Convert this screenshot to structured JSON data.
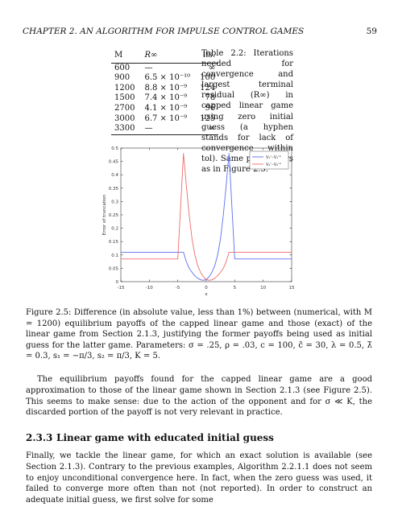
{
  "header": {
    "chapter": "CHAPTER 2.  AN ALGORITHM FOR IMPULSE CONTROL GAMES",
    "page_number": "59"
  },
  "table": {
    "columns": [
      "M",
      "R∞",
      "its."
    ],
    "rows": [
      [
        "600",
        "—",
        "∞"
      ],
      [
        "900",
        "6.5 × 10⁻¹⁰",
        "100"
      ],
      [
        "1200",
        "8.8 × 10⁻⁹",
        "124"
      ],
      [
        "1500",
        "7.4 × 10⁻⁹",
        "78"
      ],
      [
        "2700",
        "4.1 × 10⁻⁹",
        "96"
      ],
      [
        "3000",
        "6.7 × 10⁻⁹",
        "125"
      ],
      [
        "3300",
        "—",
        "∞"
      ]
    ],
    "caption": "Table 2.2: Iterations needed for convergence and largest terminal residual (R∞) in capped linear game using zero initial guess (a hyphen stands for lack of convergence within tol). Same parameters as in Figure 2.5."
  },
  "chart_data": {
    "type": "line",
    "ylabel": "Error of truncation",
    "xlabel": "x",
    "xlim": [
      -15,
      15
    ],
    "ylim": [
      0,
      0.5
    ],
    "xticks": [
      -15,
      -10,
      -5,
      0,
      5,
      10,
      15
    ],
    "yticks": [
      0,
      0.05,
      0.1,
      0.15,
      0.2,
      0.25,
      0.3,
      0.35,
      0.4,
      0.45,
      0.5
    ],
    "grid": false,
    "legend": "top-right",
    "series": [
      {
        "name": "V₁ᶜ–V₁ᶜᵃ",
        "color": "#5b6ff0",
        "x": [
          -15,
          -10,
          -5,
          -4,
          -3.5,
          -3,
          -2.5,
          -2,
          -1.5,
          -1,
          -0.5,
          0,
          0.5,
          1,
          1.5,
          2,
          2.5,
          3,
          3.5,
          4,
          5,
          10,
          15
        ],
        "y": [
          0.11,
          0.11,
          0.11,
          0.11,
          0.075,
          0.05,
          0.035,
          0.022,
          0.013,
          0.007,
          0.005,
          0.008,
          0.018,
          0.035,
          0.06,
          0.1,
          0.16,
          0.25,
          0.36,
          0.48,
          0.085,
          0.085,
          0.085
        ]
      },
      {
        "name": "V₂ᶜ–V₂ᶜᵃ",
        "color": "#f06a6a",
        "x": [
          -15,
          -10,
          -5,
          -4,
          -3.5,
          -3,
          -2.5,
          -2,
          -1.5,
          -1,
          -0.5,
          0,
          0.5,
          1,
          1.5,
          2,
          2.5,
          3,
          3.5,
          4,
          5,
          10,
          15
        ],
        "y": [
          0.085,
          0.085,
          0.085,
          0.48,
          0.36,
          0.25,
          0.16,
          0.1,
          0.06,
          0.035,
          0.018,
          0.008,
          0.005,
          0.007,
          0.013,
          0.022,
          0.035,
          0.05,
          0.075,
          0.11,
          0.11,
          0.11,
          0.11
        ]
      }
    ]
  },
  "figure_caption": "Figure 2.5: Difference (in absolute value, less than 1%) between (numerical, with M = 1200) equilibrium payoffs of the capped linear game and those (exact) of the linear game from Section 2.1.3, justifying the former payoffs being used as initial guess for the latter game. Parameters: σ = .25, ρ = .03, c = 100, c̃ = 30, λ = 0.5, λ̃ = 0.3, s₁ = −π/3, s₂ = π/3, K = 5.",
  "paragraph1": "The equilibrium payoffs found for the capped linear game are a good approximation to those of the linear game shown in Section 2.1.3 (see Figure 2.5). This seems to make sense: due to the action of the opponent and for σ ≪ K, the discarded portion of the payoff is not very relevant in practice.",
  "section": {
    "number": "2.3.3",
    "title": "Linear game with educated initial guess"
  },
  "paragraph2": "Finally, we tackle the linear game, for which an exact solution is available (see Section 2.1.3). Contrary to the previous examples, Algorithm 2.2.1.1 does not seem to enjoy unconditional convergence here. In fact, when the zero guess was used, it failed to converge more often than not (not reported). In order to construct an adequate initial guess, we first solve for some"
}
